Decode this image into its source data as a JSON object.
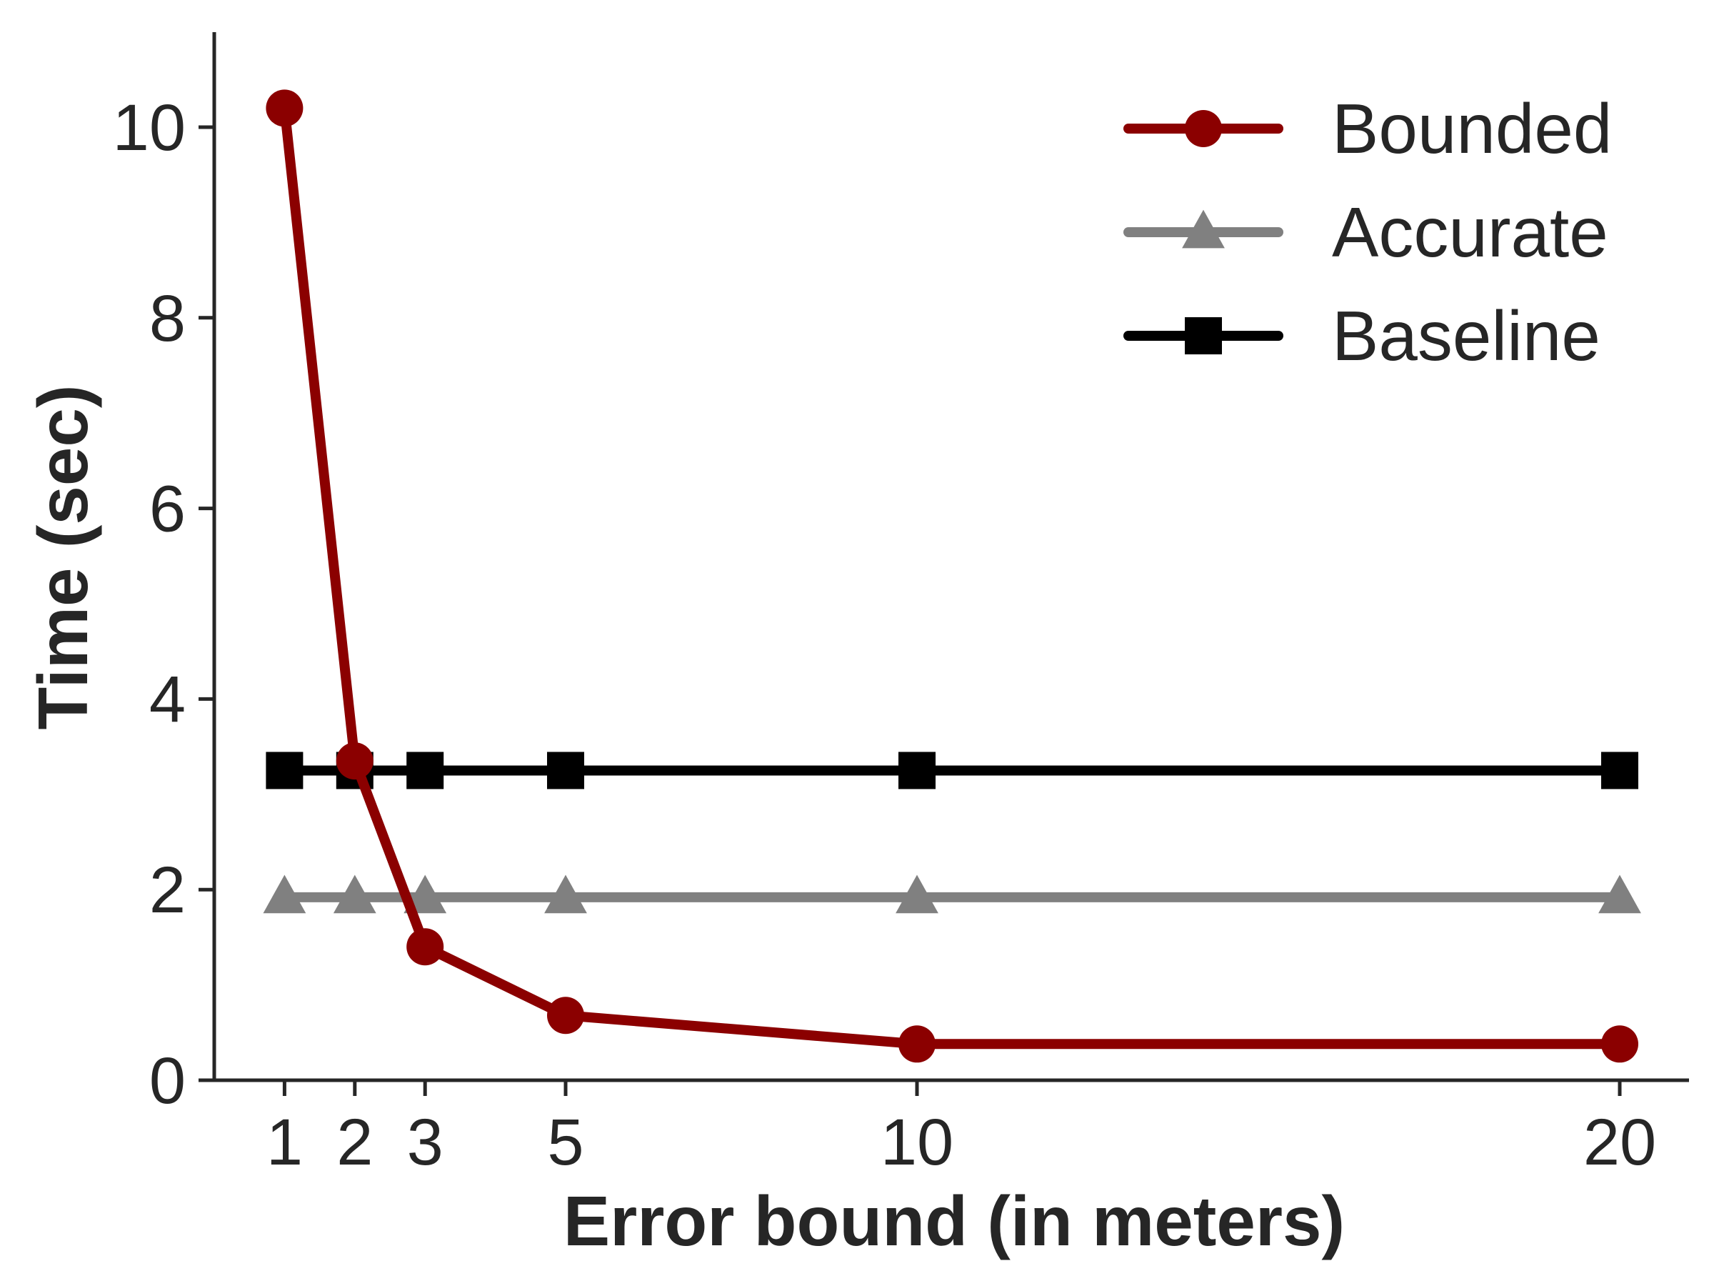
{
  "chart_data": {
    "type": "line",
    "title": "",
    "xlabel": "Error bound (in meters)",
    "ylabel": "Time (sec)",
    "x": [
      1,
      2,
      3,
      5,
      10,
      20
    ],
    "x_ticks": [
      1,
      2,
      3,
      5,
      10,
      20
    ],
    "y_ticks": [
      0,
      2,
      4,
      6,
      8,
      10
    ],
    "xlim": [
      0,
      21
    ],
    "ylim": [
      0,
      11
    ],
    "grid": false,
    "legend_position": "top-right",
    "series": [
      {
        "name": "Bounded",
        "marker": "circle",
        "color": "#8b0000",
        "values": [
          10.2,
          3.35,
          1.4,
          0.68,
          0.38,
          0.38
        ]
      },
      {
        "name": "Accurate",
        "marker": "triangle",
        "color": "#808080",
        "values": [
          1.92,
          1.92,
          1.92,
          1.92,
          1.92,
          1.92
        ]
      },
      {
        "name": "Baseline",
        "marker": "square",
        "color": "#000000",
        "values": [
          3.25,
          3.25,
          3.25,
          3.25,
          3.25,
          3.25
        ]
      }
    ]
  }
}
